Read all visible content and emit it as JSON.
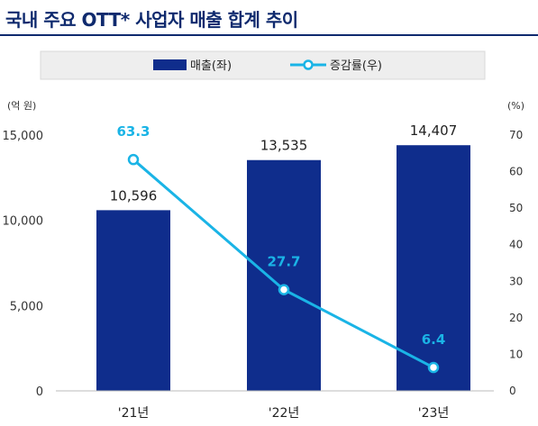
{
  "page": {
    "title": "국내 주요 OTT* 사업자 매출 합계 추이"
  },
  "chart_data": {
    "type": "bar",
    "categories": [
      "'21년",
      "'22년",
      "'23년"
    ],
    "series": [
      {
        "name": "매출(좌)",
        "type": "bar",
        "axis": "left",
        "values": [
          10596,
          13535,
          14407
        ],
        "labels": [
          "10,596",
          "13,535",
          "14,407"
        ],
        "color": "#0f2d8c"
      },
      {
        "name": "증감률(우)",
        "type": "line",
        "axis": "right",
        "values": [
          63.3,
          27.7,
          6.4
        ],
        "labels": [
          "63.3",
          "27.7",
          "6.4"
        ],
        "color": "#1ab4e6"
      }
    ],
    "left_axis": {
      "unit": "(억 원)",
      "ylim": [
        0,
        15000
      ],
      "ticks": [
        "0",
        "5,000",
        "10,000",
        "15,000"
      ],
      "tick_values": [
        0,
        5000,
        10000,
        15000
      ]
    },
    "right_axis": {
      "unit": "(%)",
      "ylim": [
        0,
        70
      ],
      "ticks": [
        "0",
        "10",
        "20",
        "30",
        "40",
        "50",
        "60",
        "70"
      ],
      "tick_values": [
        0,
        10,
        20,
        30,
        40,
        50,
        60,
        70
      ]
    },
    "legend_position": "top",
    "grid": false,
    "colors": {
      "bar": "#0f2d8c",
      "line": "#1ab4e6",
      "line_label": "#1ab4e6",
      "title": "#0f2a6e",
      "legend_bg": "#eeeeee"
    }
  }
}
